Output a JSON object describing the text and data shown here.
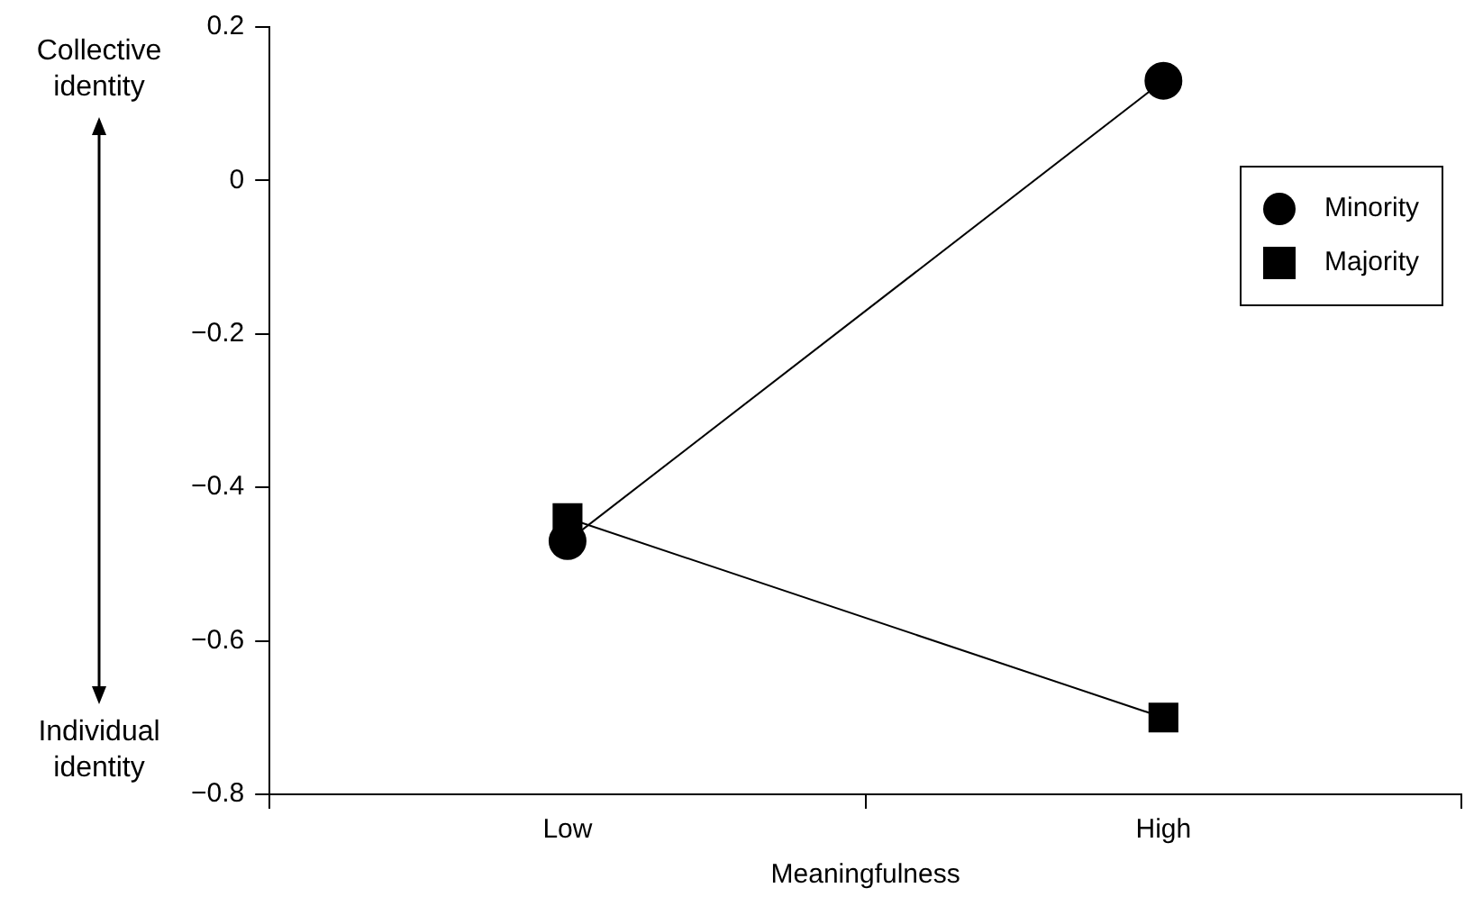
{
  "chart_data": {
    "type": "line",
    "xlabel": "Meaningfulness",
    "categories": [
      "Low",
      "High"
    ],
    "series": [
      {
        "name": "Minority",
        "color": "#000000",
        "marker": "circle",
        "values": [
          -0.47,
          0.13
        ]
      },
      {
        "name": "Majority",
        "color": "#000000",
        "marker": "square",
        "values": [
          -0.44,
          -0.7
        ]
      }
    ],
    "ylim": [
      -0.8,
      0.2
    ],
    "yticks": [
      {
        "value": -0.8,
        "label": "−0.8"
      },
      {
        "value": -0.6,
        "label": "−0.6"
      },
      {
        "value": -0.4,
        "label": "−0.4"
      },
      {
        "value": -0.2,
        "label": "−0.2"
      },
      0,
      0.2
    ],
    "grid": false,
    "legend": "right",
    "line_style": "solid",
    "annotations": [
      "Collective identity",
      "Individual identity"
    ]
  }
}
